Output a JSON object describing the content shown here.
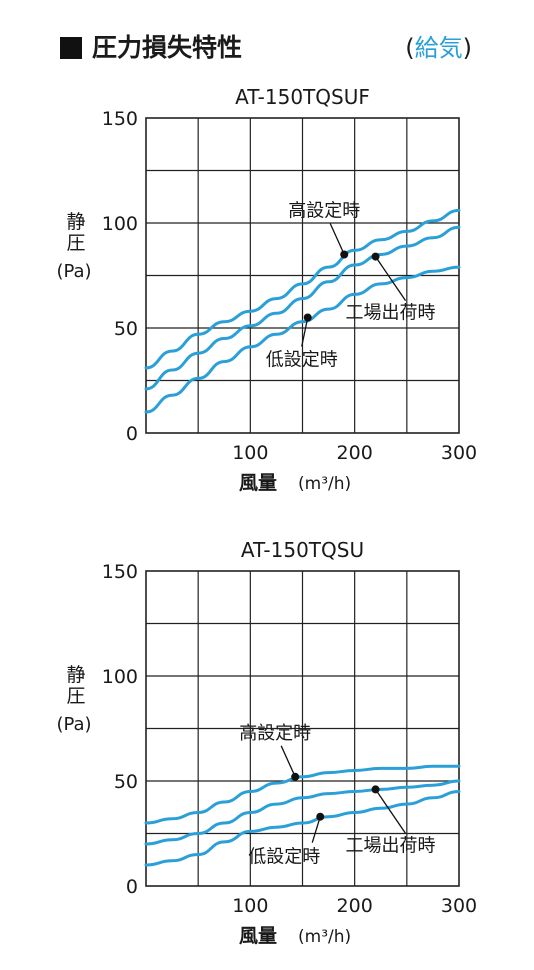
{
  "header": {
    "title": "圧力損失特性",
    "subtitle_open": "(",
    "subtitle": "給気",
    "subtitle_close": ")"
  },
  "colors": {
    "curve": "#2a9fd8",
    "grid": "#222222",
    "accent": "#2a9fd8"
  },
  "chart_data": [
    {
      "type": "line",
      "title": "AT-150TQSUF",
      "xlabel": "風量",
      "xunit": "(m³/h)",
      "ylabel": [
        "静",
        "圧"
      ],
      "yunit": "(Pa)",
      "xlim": [
        0,
        300
      ],
      "ylim": [
        0,
        150
      ],
      "x_ticks": [
        "100",
        "200",
        "300"
      ],
      "y_ticks": [
        "0",
        "50",
        "100",
        "150"
      ],
      "grid": true,
      "series": [
        {
          "name": "高設定時",
          "points": [
            [
              0,
              31
            ],
            [
              25,
              39
            ],
            [
              50,
              47
            ],
            [
              75,
              53
            ],
            [
              100,
              58
            ],
            [
              125,
              64
            ],
            [
              150,
              71
            ],
            [
              175,
              79
            ],
            [
              200,
              87
            ],
            [
              225,
              92
            ],
            [
              250,
              96
            ],
            [
              275,
              101
            ],
            [
              300,
              106
            ]
          ]
        },
        {
          "name": "工場出荷時",
          "points": [
            [
              0,
              21
            ],
            [
              25,
              30
            ],
            [
              50,
              38
            ],
            [
              75,
              45
            ],
            [
              100,
              51
            ],
            [
              125,
              57
            ],
            [
              150,
              64
            ],
            [
              175,
              72
            ],
            [
              200,
              80
            ],
            [
              225,
              85
            ],
            [
              250,
              89
            ],
            [
              275,
              93
            ],
            [
              300,
              98
            ]
          ]
        },
        {
          "name": "低設定時",
          "points": [
            [
              0,
              10
            ],
            [
              25,
              18
            ],
            [
              50,
              26
            ],
            [
              75,
              34
            ],
            [
              100,
              41
            ],
            [
              125,
              47
            ],
            [
              150,
              53
            ],
            [
              175,
              59
            ],
            [
              200,
              66
            ],
            [
              225,
              71
            ],
            [
              250,
              74
            ],
            [
              275,
              77
            ],
            [
              300,
              79
            ]
          ]
        }
      ],
      "annotations": [
        {
          "label": "高設定時",
          "point": [
            190,
            85
          ],
          "text_pos": "upper-left"
        },
        {
          "label": "工場出荷時",
          "point": [
            220,
            84
          ],
          "text_pos": "lower-right"
        },
        {
          "label": "低設定時",
          "point": [
            155,
            55
          ],
          "text_pos": "below"
        }
      ]
    },
    {
      "type": "line",
      "title": "AT-150TQSU",
      "xlabel": "風量",
      "xunit": "(m³/h)",
      "ylabel": [
        "静",
        "圧"
      ],
      "yunit": "(Pa)",
      "xlim": [
        0,
        300
      ],
      "ylim": [
        0,
        150
      ],
      "x_ticks": [
        "100",
        "200",
        "300"
      ],
      "y_ticks": [
        "0",
        "50",
        "100",
        "150"
      ],
      "grid": true,
      "series": [
        {
          "name": "高設定時",
          "points": [
            [
              0,
              30
            ],
            [
              25,
              32
            ],
            [
              50,
              35
            ],
            [
              75,
              40
            ],
            [
              100,
              45
            ],
            [
              125,
              49
            ],
            [
              150,
              52
            ],
            [
              175,
              54
            ],
            [
              200,
              55
            ],
            [
              225,
              56
            ],
            [
              250,
              56
            ],
            [
              275,
              57
            ],
            [
              300,
              57
            ]
          ]
        },
        {
          "name": "工場出荷時",
          "points": [
            [
              0,
              20
            ],
            [
              25,
              22
            ],
            [
              50,
              25
            ],
            [
              75,
              30
            ],
            [
              100,
              35
            ],
            [
              125,
              39
            ],
            [
              150,
              42
            ],
            [
              175,
              44
            ],
            [
              200,
              45
            ],
            [
              225,
              46
            ],
            [
              250,
              47
            ],
            [
              275,
              48
            ],
            [
              300,
              50
            ]
          ]
        },
        {
          "name": "低設定時",
          "points": [
            [
              0,
              10
            ],
            [
              25,
              12
            ],
            [
              50,
              15
            ],
            [
              75,
              21
            ],
            [
              100,
              26
            ],
            [
              125,
              28
            ],
            [
              150,
              30
            ],
            [
              175,
              33
            ],
            [
              200,
              35
            ],
            [
              225,
              37
            ],
            [
              250,
              39
            ],
            [
              275,
              42
            ],
            [
              300,
              45
            ]
          ]
        }
      ],
      "annotations": [
        {
          "label": "高設定時",
          "point": [
            143,
            52
          ],
          "text_pos": "upper-left"
        },
        {
          "label": "工場出荷時",
          "point": [
            220,
            46
          ],
          "text_pos": "lower-right"
        },
        {
          "label": "低設定時",
          "point": [
            167,
            33
          ],
          "text_pos": "below-left"
        }
      ]
    }
  ]
}
